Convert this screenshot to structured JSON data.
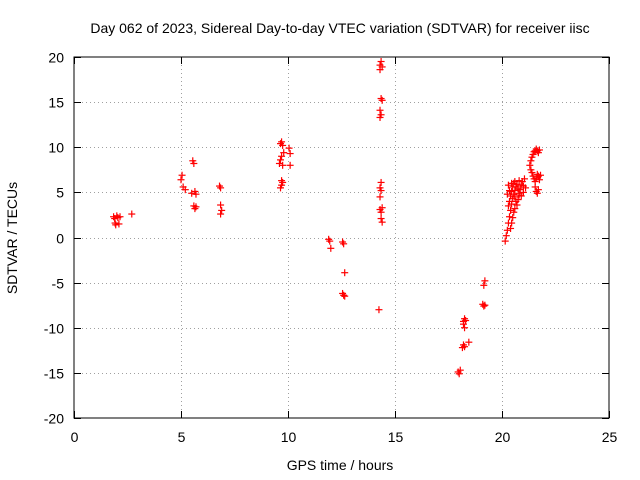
{
  "chart_data": {
    "type": "scatter",
    "title": "Day 062 of 2023, Sidereal Day-to-day VTEC variation (SDTVAR) for receiver iisc",
    "xlabel": "GPS time / hours",
    "ylabel": "SDTVAR / TECUs",
    "xlim": [
      0,
      25
    ],
    "ylim": [
      -20,
      20
    ],
    "xticks": [
      0,
      5,
      10,
      15,
      20,
      25
    ],
    "yticks": [
      -20,
      -15,
      -10,
      -5,
      0,
      5,
      10,
      15,
      20
    ],
    "grid": true,
    "marker": "+",
    "color": "#ff0000",
    "series": [
      {
        "name": "iisc",
        "points": [
          [
            1.85,
            2.3
          ],
          [
            1.9,
            2.1
          ],
          [
            1.92,
            1.6
          ],
          [
            1.95,
            1.4
          ],
          [
            2.0,
            2.4
          ],
          [
            2.05,
            2.2
          ],
          [
            2.1,
            1.5
          ],
          [
            2.15,
            2.3
          ],
          [
            2.7,
            2.6
          ],
          [
            5.0,
            6.4
          ],
          [
            5.05,
            6.9
          ],
          [
            5.1,
            5.6
          ],
          [
            5.2,
            5.3
          ],
          [
            5.5,
            4.9
          ],
          [
            5.55,
            8.5
          ],
          [
            5.6,
            8.2
          ],
          [
            5.65,
            5.1
          ],
          [
            5.7,
            4.8
          ],
          [
            5.6,
            3.5
          ],
          [
            5.65,
            3.2
          ],
          [
            5.7,
            3.4
          ],
          [
            6.8,
            5.7
          ],
          [
            6.85,
            5.5
          ],
          [
            6.85,
            3.6
          ],
          [
            6.9,
            3.0
          ],
          [
            6.85,
            2.6
          ],
          [
            9.6,
            8.2
          ],
          [
            9.65,
            8.6
          ],
          [
            9.7,
            9.0
          ],
          [
            9.65,
            10.4
          ],
          [
            9.7,
            10.6
          ],
          [
            9.75,
            10.2
          ],
          [
            9.75,
            8.0
          ],
          [
            9.7,
            6.3
          ],
          [
            9.75,
            6.1
          ],
          [
            9.65,
            5.5
          ],
          [
            9.7,
            5.8
          ],
          [
            9.8,
            9.4
          ],
          [
            10.05,
            9.9
          ],
          [
            10.1,
            9.3
          ],
          [
            10.1,
            8.0
          ],
          [
            11.9,
            -0.2
          ],
          [
            11.95,
            -0.4
          ],
          [
            12.0,
            -1.2
          ],
          [
            12.55,
            -0.5
          ],
          [
            12.6,
            -0.7
          ],
          [
            12.65,
            -3.9
          ],
          [
            12.55,
            -6.2
          ],
          [
            12.6,
            -6.4
          ],
          [
            12.65,
            -6.5
          ],
          [
            14.3,
            19.1
          ],
          [
            14.35,
            19.5
          ],
          [
            14.3,
            18.6
          ],
          [
            14.4,
            18.9
          ],
          [
            14.35,
            15.4
          ],
          [
            14.4,
            15.2
          ],
          [
            14.3,
            14.1
          ],
          [
            14.35,
            13.6
          ],
          [
            14.3,
            13.3
          ],
          [
            14.35,
            6.1
          ],
          [
            14.3,
            5.5
          ],
          [
            14.35,
            5.2
          ],
          [
            14.3,
            4.5
          ],
          [
            14.3,
            3.1
          ],
          [
            14.35,
            2.8
          ],
          [
            14.4,
            3.3
          ],
          [
            14.35,
            2.1
          ],
          [
            14.4,
            1.7
          ],
          [
            14.25,
            -8.0
          ],
          [
            17.95,
            -14.9
          ],
          [
            18.0,
            -15.1
          ],
          [
            18.05,
            -14.7
          ],
          [
            18.15,
            -12.2
          ],
          [
            18.2,
            -11.9
          ],
          [
            18.25,
            -12.1
          ],
          [
            18.2,
            -9.3
          ],
          [
            18.25,
            -9.0
          ],
          [
            18.2,
            -9.6
          ],
          [
            18.25,
            -10.0
          ],
          [
            18.3,
            -9.2
          ],
          [
            18.45,
            -11.6
          ],
          [
            19.1,
            -7.4
          ],
          [
            19.15,
            -7.6
          ],
          [
            19.2,
            -7.5
          ],
          [
            19.15,
            -5.3
          ],
          [
            19.2,
            -4.8
          ],
          [
            20.15,
            -0.4
          ],
          [
            20.2,
            0.2
          ],
          [
            20.25,
            0.8
          ],
          [
            20.3,
            1.6
          ],
          [
            20.35,
            2.3
          ],
          [
            20.4,
            3.0
          ],
          [
            20.45,
            3.7
          ],
          [
            20.5,
            4.3
          ],
          [
            20.55,
            4.8
          ],
          [
            20.6,
            5.2
          ],
          [
            20.65,
            5.6
          ],
          [
            20.7,
            5.9
          ],
          [
            20.75,
            5.4
          ],
          [
            20.8,
            4.9
          ],
          [
            20.85,
            5.3
          ],
          [
            20.9,
            5.8
          ],
          [
            20.95,
            6.2
          ],
          [
            21.0,
            5.7
          ],
          [
            20.3,
            3.5
          ],
          [
            20.35,
            4.0
          ],
          [
            20.4,
            4.6
          ],
          [
            20.45,
            5.1
          ],
          [
            20.5,
            5.6
          ],
          [
            20.55,
            6.0
          ],
          [
            20.6,
            4.5
          ],
          [
            20.65,
            4.0
          ],
          [
            20.7,
            3.6
          ],
          [
            20.75,
            4.2
          ],
          [
            20.8,
            4.7
          ],
          [
            20.9,
            4.6
          ],
          [
            21.0,
            5.0
          ],
          [
            21.1,
            5.5
          ],
          [
            20.4,
            1.0
          ],
          [
            20.45,
            1.6
          ],
          [
            20.5,
            2.2
          ],
          [
            20.55,
            2.8
          ],
          [
            20.6,
            3.2
          ],
          [
            20.3,
            5.8
          ],
          [
            20.45,
            6.0
          ],
          [
            20.6,
            6.2
          ],
          [
            20.8,
            6.3
          ],
          [
            21.05,
            6.5
          ],
          [
            20.25,
            4.8
          ],
          [
            20.35,
            5.2
          ],
          [
            21.3,
            8.0
          ],
          [
            21.35,
            8.5
          ],
          [
            21.4,
            8.9
          ],
          [
            21.45,
            9.2
          ],
          [
            21.5,
            9.5
          ],
          [
            21.55,
            9.6
          ],
          [
            21.6,
            9.8
          ],
          [
            21.65,
            9.6
          ],
          [
            21.7,
            9.4
          ],
          [
            21.75,
            9.7
          ],
          [
            21.35,
            7.5
          ],
          [
            21.4,
            7.2
          ],
          [
            21.45,
            6.8
          ],
          [
            21.5,
            6.5
          ],
          [
            21.55,
            6.2
          ],
          [
            21.6,
            6.6
          ],
          [
            21.65,
            7.0
          ],
          [
            21.7,
            6.8
          ],
          [
            21.75,
            6.4
          ],
          [
            21.8,
            6.9
          ],
          [
            21.55,
            5.6
          ],
          [
            21.6,
            5.1
          ],
          [
            21.65,
            4.9
          ],
          [
            21.7,
            5.3
          ]
        ]
      }
    ]
  }
}
